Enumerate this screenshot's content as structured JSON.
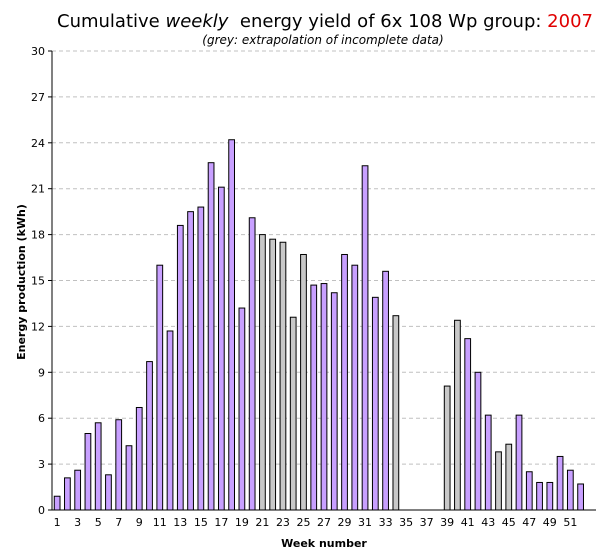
{
  "chart_data": {
    "type": "bar",
    "title": {
      "prefix": "Cumulative ",
      "emphasis": "weekly",
      "middle": "  energy yield of 6x 108 Wp group: ",
      "year": "2007"
    },
    "subtitle": "(grey: extrapolation of incomplete data)",
    "xlabel": "Week number",
    "ylabel": "Energy production (kWh)",
    "ylim": [
      0,
      30
    ],
    "yticks": [
      0,
      3,
      6,
      9,
      12,
      15,
      18,
      21,
      24,
      27,
      30
    ],
    "xticks": [
      1,
      3,
      5,
      7,
      9,
      11,
      13,
      15,
      17,
      19,
      21,
      23,
      25,
      27,
      29,
      31,
      33,
      35,
      37,
      39,
      41,
      43,
      45,
      47,
      49,
      51
    ],
    "weeks": [
      1,
      2,
      3,
      4,
      5,
      6,
      7,
      8,
      9,
      10,
      11,
      12,
      13,
      14,
      15,
      16,
      17,
      18,
      19,
      20,
      21,
      22,
      23,
      24,
      25,
      26,
      27,
      28,
      29,
      30,
      31,
      32,
      33,
      34,
      35,
      36,
      37,
      38,
      39,
      40,
      41,
      42,
      43,
      44,
      45,
      46,
      47,
      48,
      49,
      50,
      51,
      52,
      53
    ],
    "values": [
      0.9,
      2.1,
      2.6,
      5.0,
      5.7,
      2.3,
      5.9,
      4.2,
      6.7,
      9.7,
      16.0,
      11.7,
      18.6,
      19.5,
      19.8,
      22.7,
      21.1,
      24.2,
      13.2,
      19.1,
      18.0,
      17.7,
      17.5,
      12.6,
      16.7,
      14.7,
      14.8,
      14.2,
      16.7,
      16.0,
      22.5,
      13.9,
      15.6,
      12.7,
      0,
      0,
      0,
      0,
      8.1,
      12.4,
      11.2,
      9.0,
      6.2,
      3.8,
      4.3,
      6.2,
      2.5,
      1.8,
      1.8,
      3.5,
      2.6,
      1.7,
      0
    ],
    "extrapolated": [
      0,
      0,
      0,
      0,
      0,
      0,
      0,
      0,
      0,
      0,
      0,
      0,
      0,
      0,
      0,
      0,
      0,
      0,
      0,
      0,
      1,
      1,
      1,
      1,
      1,
      0,
      0,
      0,
      0,
      0,
      0,
      0,
      0,
      1,
      0,
      0,
      0,
      0,
      1,
      1,
      0,
      0,
      0,
      1,
      1,
      0,
      0,
      0,
      0,
      0,
      0,
      0,
      0
    ],
    "colors": {
      "measured": "#c8a0ff",
      "extrapolated": "#c8c8c8",
      "year": "#e00000",
      "grid": "#c0c0c0"
    },
    "grid": true
  }
}
